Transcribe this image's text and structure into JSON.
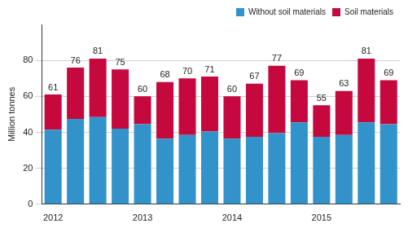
{
  "chart_data": {
    "type": "bar",
    "stacked": true,
    "y_label": "Million tonnes",
    "categories": [
      "2012",
      null,
      null,
      null,
      "2013",
      null,
      null,
      null,
      "2014",
      null,
      null,
      null,
      "2015",
      null,
      null,
      null
    ],
    "series": [
      {
        "name": "Without soil materials",
        "color": "#3193c9",
        "values": [
          41.5,
          47.5,
          48.5,
          42,
          44.5,
          36.5,
          38.5,
          40.5,
          36.5,
          37.5,
          39.5,
          45.5,
          37.5,
          38.5,
          45.5,
          44.5
        ]
      },
      {
        "name": "Soil materials",
        "color": "#c5093f",
        "values": [
          19.5,
          28.5,
          32.5,
          33,
          15.5,
          31.5,
          31.5,
          30.5,
          23.5,
          29.5,
          37.5,
          23.5,
          17.5,
          24.5,
          35.5,
          24.5
        ]
      }
    ],
    "totals": [
      61,
      76,
      81,
      75,
      60,
      68,
      70,
      71,
      60,
      67,
      77,
      69,
      55,
      63,
      81,
      69
    ],
    "ylim": [
      0,
      100
    ],
    "yticks": [
      0,
      20,
      40,
      60,
      80
    ],
    "grid": true,
    "legend": "top-right"
  }
}
